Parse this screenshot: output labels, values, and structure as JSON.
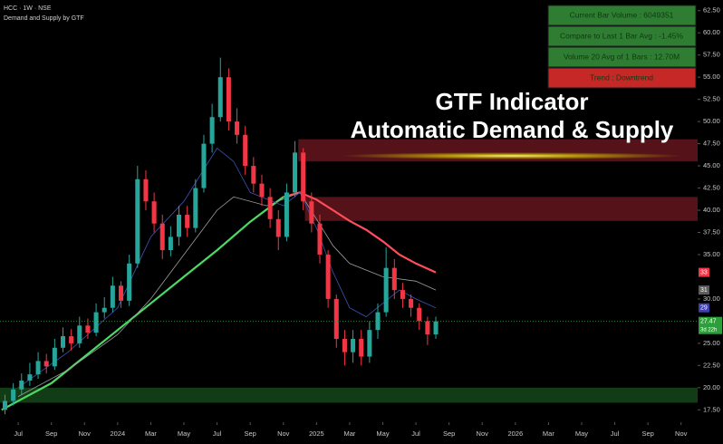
{
  "chart_data": {
    "type": "candlestick",
    "symbol": "HCC · 1W · NSE",
    "indicator": "Demand and Supply by GTF",
    "title": "GTF Indicator",
    "subtitle": "Automatic Demand & Supply",
    "up_color": "#26a69a",
    "down_color": "#f23645",
    "xlim": [
      -1.1,
      41
    ],
    "ylim": [
      16.1,
      63.7
    ],
    "xticks": [
      {
        "value": 0,
        "label": "Jul"
      },
      {
        "value": 2,
        "label": "Sep"
      },
      {
        "value": 4,
        "label": "Nov"
      },
      {
        "value": 6,
        "label": "2024"
      },
      {
        "value": 8,
        "label": "Mar"
      },
      {
        "value": 10,
        "label": "May"
      },
      {
        "value": 12,
        "label": "Jul"
      },
      {
        "value": 14,
        "label": "Sep"
      },
      {
        "value": 16,
        "label": "Nov"
      },
      {
        "value": 18,
        "label": "2025"
      },
      {
        "value": 20,
        "label": "Mar"
      },
      {
        "value": 22,
        "label": "May"
      },
      {
        "value": 24,
        "label": "Jul"
      },
      {
        "value": 26,
        "label": "Sep"
      },
      {
        "value": 28,
        "label": "Nov"
      },
      {
        "value": 30,
        "label": "2026"
      },
      {
        "value": 32,
        "label": "Mar"
      },
      {
        "value": 34,
        "label": "May"
      },
      {
        "value": 36,
        "label": "Jul"
      },
      {
        "value": 38,
        "label": "Sep"
      },
      {
        "value": 40,
        "label": "Nov"
      }
    ],
    "yticks": [
      {
        "value": 17.5,
        "label": "17.50"
      },
      {
        "value": 20,
        "label": "20.00"
      },
      {
        "value": 22.5,
        "label": "22.50"
      },
      {
        "value": 25,
        "label": "25.00"
      },
      {
        "value": 30,
        "label": "30.00"
      },
      {
        "value": 35,
        "label": "35.00"
      },
      {
        "value": 37.5,
        "label": "37.50"
      },
      {
        "value": 40,
        "label": "40.00"
      },
      {
        "value": 42.5,
        "label": "42.50"
      },
      {
        "value": 45,
        "label": "45.00"
      },
      {
        "value": 47.5,
        "label": "47.50"
      },
      {
        "value": 50,
        "label": "50.00"
      },
      {
        "value": 52.5,
        "label": "52.50"
      },
      {
        "value": 55,
        "label": "55.00"
      },
      {
        "value": 57.5,
        "label": "57.50"
      },
      {
        "value": 60,
        "label": "60.00"
      },
      {
        "value": 62.5,
        "label": "62.50"
      }
    ],
    "candles": {
      "x": [
        -0.8,
        -0.3,
        0.2,
        0.7,
        1.2,
        1.7,
        2.2,
        2.7,
        3.2,
        3.7,
        4.2,
        4.7,
        5.2,
        5.7,
        6.2,
        6.7,
        7.2,
        7.7,
        8.2,
        8.7,
        9.2,
        9.7,
        10.2,
        10.7,
        11.2,
        11.7,
        12.2,
        12.7,
        13.2,
        13.7,
        14.2,
        14.7,
        15.2,
        15.7,
        16.2,
        16.7,
        17.2,
        17.7,
        18.2,
        18.7,
        19.2,
        19.7,
        20.2,
        20.7,
        21.2,
        21.7,
        22.2,
        22.7,
        23.2,
        23.7,
        24.2,
        24.7,
        25.2
      ],
      "open": [
        17.5,
        18.5,
        19.8,
        20.8,
        21.5,
        23.0,
        22.4,
        24.5,
        25.8,
        25.0,
        27.0,
        26.2,
        28.5,
        29.0,
        31.5,
        29.8,
        34.0,
        43.5,
        41.0,
        38.5,
        35.5,
        37.0,
        39.5,
        38.0,
        42.5,
        47.5,
        50.5,
        55.0,
        50.0,
        48.5,
        45.0,
        43.0,
        41.5,
        39.0,
        37.0,
        42.0,
        46.5,
        41.0,
        38.5,
        35.0,
        30.0,
        25.5,
        24.0,
        25.5,
        23.5,
        26.5,
        28.5,
        33.5,
        31.0,
        30.0,
        29.0,
        27.5,
        26.0
      ],
      "high": [
        19.2,
        20.5,
        21.6,
        22.8,
        24.0,
        23.8,
        25.5,
        26.8,
        26.6,
        28.0,
        27.8,
        29.5,
        30.2,
        32.5,
        32.0,
        35.0,
        45.0,
        44.5,
        42.0,
        39.5,
        38.2,
        40.5,
        40.5,
        43.5,
        48.5,
        52.0,
        57.2,
        56.0,
        51.5,
        49.5,
        46.0,
        44.0,
        42.5,
        40.0,
        43.0,
        47.8,
        47.0,
        42.0,
        39.5,
        35.5,
        30.5,
        26.5,
        26.5,
        26.5,
        27.5,
        29.5,
        35.8,
        34.5,
        31.8,
        30.5,
        29.5,
        28.0,
        28.0
      ],
      "low": [
        17.0,
        18.0,
        19.2,
        20.2,
        21.0,
        21.6,
        22.0,
        24.0,
        24.2,
        24.5,
        25.5,
        25.8,
        27.8,
        28.5,
        29.0,
        29.2,
        33.5,
        40.0,
        37.5,
        34.5,
        34.8,
        36.0,
        37.0,
        37.5,
        42.0,
        46.5,
        50.0,
        49.0,
        47.5,
        44.0,
        42.0,
        40.5,
        38.0,
        35.5,
        36.5,
        41.5,
        40.0,
        37.5,
        34.0,
        29.0,
        24.5,
        22.5,
        22.8,
        22.5,
        22.8,
        25.5,
        28.0,
        30.0,
        29.0,
        28.0,
        26.5,
        24.8,
        25.5
      ],
      "close": [
        18.5,
        19.8,
        20.8,
        21.5,
        23.0,
        22.4,
        24.5,
        25.8,
        25.0,
        27.0,
        26.2,
        28.5,
        29.0,
        31.5,
        29.8,
        34.0,
        43.5,
        41.0,
        38.5,
        35.5,
        37.0,
        39.5,
        38.0,
        42.5,
        47.5,
        50.5,
        55.0,
        50.0,
        48.5,
        45.0,
        43.0,
        41.5,
        39.0,
        37.0,
        42.0,
        46.5,
        41.0,
        38.5,
        35.0,
        30.0,
        25.5,
        24.0,
        25.5,
        23.5,
        26.5,
        28.5,
        33.5,
        31.0,
        30.0,
        29.0,
        27.5,
        26.0,
        27.47
      ]
    },
    "overlays": [
      {
        "color": "#4cd964",
        "width": 2.2,
        "x": [
          -1,
          2,
          4,
          6,
          8,
          10,
          12,
          14,
          16
        ],
        "values": [
          17.5,
          20.5,
          23.5,
          26.5,
          29.5,
          32.5,
          35.5,
          38.7,
          41.5
        ]
      },
      {
        "color": "#ff4d5a",
        "width": 2.2,
        "x": [
          16,
          17,
          18,
          19,
          20,
          21,
          22,
          23,
          24,
          25.2
        ],
        "values": [
          41.5,
          42,
          41.2,
          40,
          38.8,
          37.8,
          36.5,
          35,
          34,
          33
        ]
      },
      {
        "color": "#9e9e9e",
        "width": 0.8,
        "x": [
          0,
          3,
          6,
          8,
          10,
          12,
          13,
          15,
          17,
          18,
          19,
          20,
          22,
          24,
          25.2
        ],
        "values": [
          19,
          22,
          26,
          30,
          35,
          40,
          41.5,
          40.5,
          42,
          39,
          36,
          34,
          32.5,
          32,
          31
        ]
      },
      {
        "color": "#3f51b5",
        "width": 0.8,
        "x": [
          0,
          3,
          6,
          8,
          10,
          12,
          13,
          14,
          16,
          17,
          18,
          19,
          20,
          21,
          22,
          23,
          24,
          25.2
        ],
        "values": [
          20,
          24,
          29,
          37,
          41,
          47,
          45.5,
          42,
          40.5,
          42,
          38,
          33,
          29,
          28,
          29.5,
          31,
          30,
          29
        ]
      }
    ],
    "zones": [
      {
        "color": "#e03040",
        "x0": 16.9,
        "low": 45.5,
        "high": 48
      },
      {
        "color": "#e03040",
        "x0": 17.3,
        "low": 38.8,
        "high": 41.5
      },
      {
        "color": "#2e9e3a",
        "x0": -1.1,
        "low": 18.3,
        "high": 20
      }
    ],
    "price_tags": [
      {
        "value": 33,
        "label": "33",
        "color": "#f23645"
      },
      {
        "value": 31,
        "label": "31",
        "color": "#5d5d5d"
      },
      {
        "value": 29,
        "label": "29",
        "color": "#3f3fb0"
      },
      {
        "value": 27.47,
        "label": "27.47",
        "color": "#2e9e3a"
      }
    ],
    "countdown": "3d 22h",
    "info_table": [
      {
        "text": "Current Bar Volume : 6049351",
        "color": "#2e7d32"
      },
      {
        "text": "Compare to Last 1 Bar Avg : -1.45%",
        "color": "#2e7d32"
      },
      {
        "text": "Volume 20 Avg of 1 Bars : 12.70M",
        "color": "#2e7d32"
      },
      {
        "text": "Trend : Downtrend",
        "color": "#c62828"
      }
    ]
  }
}
